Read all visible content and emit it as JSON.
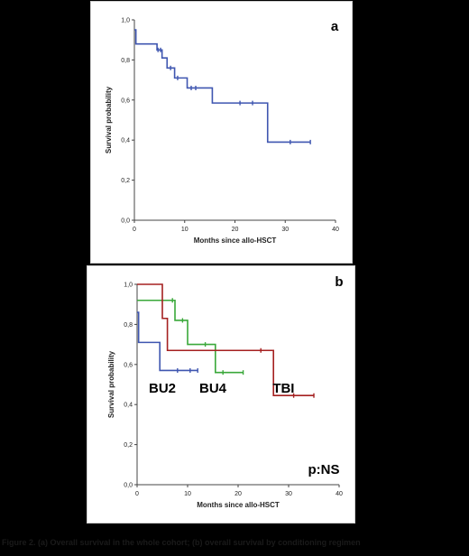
{
  "chart_data": [
    {
      "type": "line",
      "step": true,
      "panel_label": "a",
      "xlabel": "Months since allo-HSCT",
      "ylabel": "Survival probability",
      "xlim": [
        0,
        40
      ],
      "ylim": [
        0,
        1
      ],
      "xticks": [
        "0",
        "10",
        "20",
        "30",
        "40"
      ],
      "yticks": [
        "0,0",
        "0,2",
        "0,4",
        "0,6",
        "0,8",
        "1,0"
      ],
      "series": [
        {
          "color": "#3f56b0",
          "points": [
            [
              0,
              0.95
            ],
            [
              0.3,
              0.88
            ],
            [
              4.5,
              0.85
            ],
            [
              5.5,
              0.81
            ],
            [
              6.5,
              0.76
            ],
            [
              8,
              0.71
            ],
            [
              10.5,
              0.66
            ],
            [
              15.5,
              0.585
            ],
            [
              26.5,
              0.39
            ],
            [
              35,
              0.39
            ]
          ],
          "censored": [
            [
              4.7,
              0.85
            ],
            [
              5.2,
              0.85
            ],
            [
              7.2,
              0.76
            ],
            [
              8.6,
              0.71
            ],
            [
              11.3,
              0.66
            ],
            [
              12.2,
              0.66
            ],
            [
              21,
              0.585
            ],
            [
              23.5,
              0.585
            ],
            [
              31,
              0.39
            ],
            [
              35,
              0.39
            ]
          ]
        }
      ]
    },
    {
      "type": "line",
      "step": true,
      "panel_label": "b",
      "xlabel": "Months since allo-HSCT",
      "ylabel": "Survival probability",
      "xlim": [
        0,
        40
      ],
      "ylim": [
        0,
        1
      ],
      "xticks": [
        "0",
        "10",
        "20",
        "30",
        "40"
      ],
      "yticks": [
        "0,0",
        "0,2",
        "0,4",
        "0,6",
        "0,8",
        "1,0"
      ],
      "annotation": "p:NS",
      "series": [
        {
          "name": "BU2",
          "color": "#3f56b0",
          "label_at": [
            5,
            0.46
          ],
          "points": [
            [
              0,
              0.86
            ],
            [
              0.3,
              0.71
            ],
            [
              4.5,
              0.57
            ],
            [
              12,
              0.57
            ]
          ],
          "censored": [
            [
              8,
              0.57
            ],
            [
              10.5,
              0.57
            ],
            [
              12,
              0.57
            ]
          ]
        },
        {
          "name": "BU4",
          "color": "#3aa83a",
          "label_at": [
            15,
            0.46
          ],
          "points": [
            [
              0,
              0.92
            ],
            [
              7.5,
              0.82
            ],
            [
              10,
              0.7
            ],
            [
              15.5,
              0.56
            ],
            [
              21,
              0.56
            ]
          ],
          "censored": [
            [
              7,
              0.92
            ],
            [
              9,
              0.82
            ],
            [
              13.5,
              0.7
            ],
            [
              17,
              0.56
            ],
            [
              21,
              0.56
            ]
          ]
        },
        {
          "name": "TBI",
          "color": "#a52020",
          "label_at": [
            29,
            0.46
          ],
          "points": [
            [
              0,
              1.0
            ],
            [
              5,
              0.83
            ],
            [
              6,
              0.67
            ],
            [
              27,
              0.445
            ],
            [
              35,
              0.445
            ]
          ],
          "censored": [
            [
              24.5,
              0.67
            ],
            [
              31,
              0.445
            ],
            [
              35,
              0.445
            ]
          ]
        }
      ]
    }
  ],
  "caption": "Figure 2. (a) Overall survival in the whole cohort; (b) overall survival by conditioning regimen"
}
